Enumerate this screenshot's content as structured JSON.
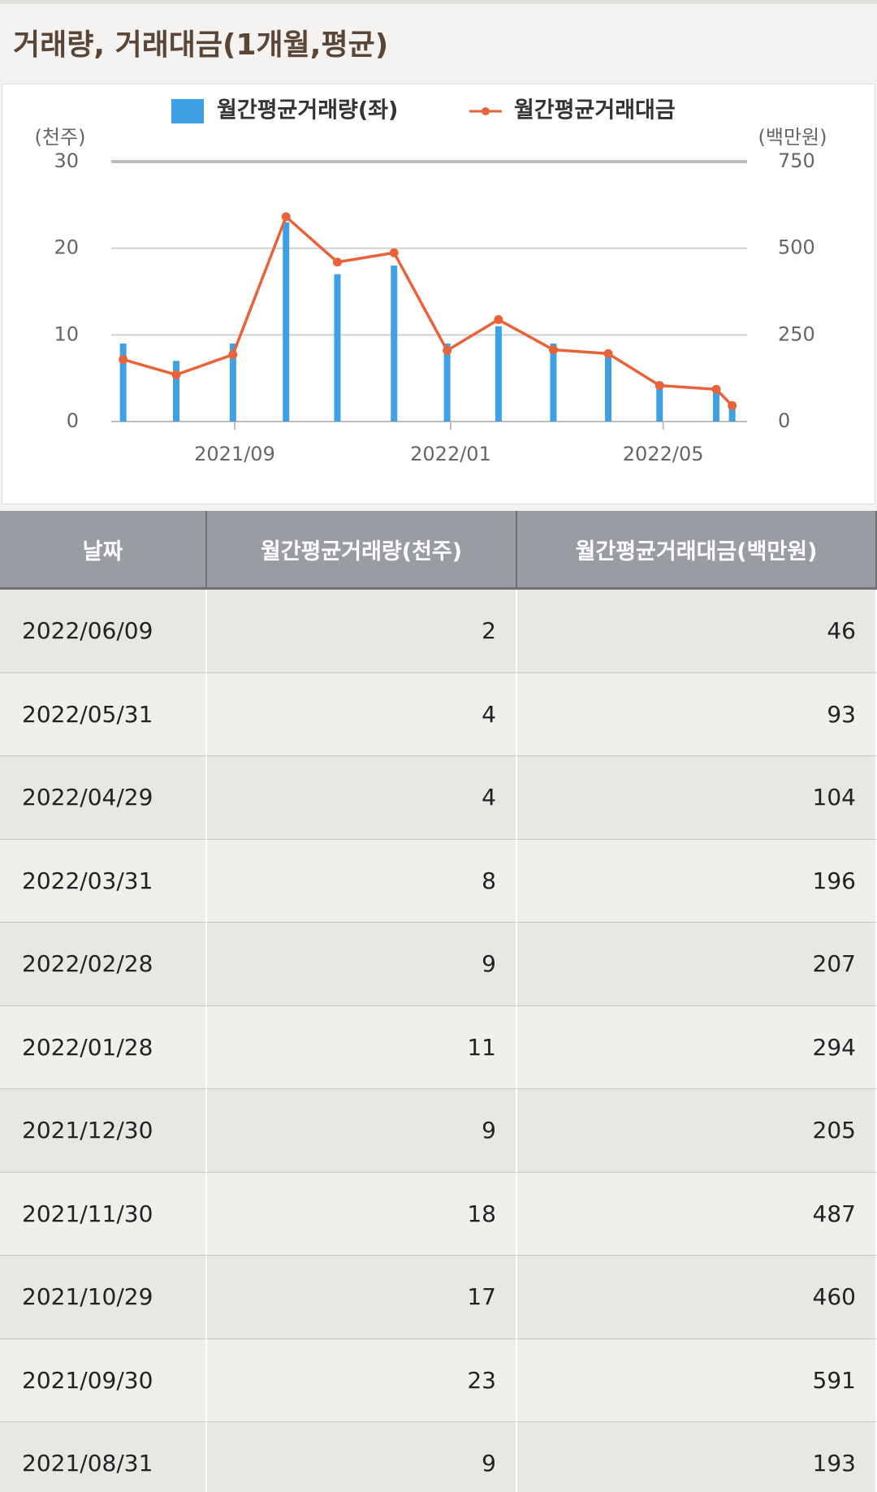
{
  "header": {
    "title": "거래량, 거래대금(1개월,평균)"
  },
  "chart_data": {
    "type": "bar-line",
    "ylabel": "(천주)",
    "y2label": "(백만원)",
    "x": [
      "2021/06/30",
      "2021/07/30",
      "2021/08/31",
      "2021/09/30",
      "2021/10/29",
      "2021/11/30",
      "2021/12/30",
      "2022/01/28",
      "2022/02/28",
      "2022/03/31",
      "2022/04/29",
      "2022/05/31",
      "2022/06/09"
    ],
    "series": [
      {
        "name": "월간평균거래량(좌)",
        "type": "bar",
        "color": "#3ea1e6",
        "values": [
          9,
          7,
          9,
          23,
          17,
          18,
          9,
          11,
          9,
          8,
          4,
          4,
          2
        ]
      },
      {
        "name": "월간평균거래대금",
        "type": "line",
        "axis": "y2",
        "color": "#e8623a",
        "values": [
          179,
          135,
          193,
          591,
          460,
          487,
          205,
          294,
          207,
          196,
          104,
          93,
          46
        ]
      }
    ],
    "xticks": [
      "2021/09",
      "2022/01",
      "2022/05"
    ],
    "ylim": [
      0,
      30
    ],
    "yticks": [
      0,
      10,
      20,
      30
    ],
    "y2lim": [
      0,
      750
    ],
    "y2ticks": [
      0,
      250,
      500,
      750
    ],
    "grid": true,
    "legend": "top"
  },
  "table": {
    "columns": [
      "날짜",
      "월간평균거래량(천주)",
      "월간평균거래대금(백만원)"
    ],
    "rows": [
      [
        "2022/06/09",
        2,
        46
      ],
      [
        "2022/05/31",
        4,
        93
      ],
      [
        "2022/04/29",
        4,
        104
      ],
      [
        "2022/03/31",
        8,
        196
      ],
      [
        "2022/02/28",
        9,
        207
      ],
      [
        "2022/01/28",
        11,
        294
      ],
      [
        "2021/12/30",
        9,
        205
      ],
      [
        "2021/11/30",
        18,
        487
      ],
      [
        "2021/10/29",
        17,
        460
      ],
      [
        "2021/09/30",
        23,
        591
      ],
      [
        "2021/08/31",
        9,
        193
      ]
    ]
  }
}
